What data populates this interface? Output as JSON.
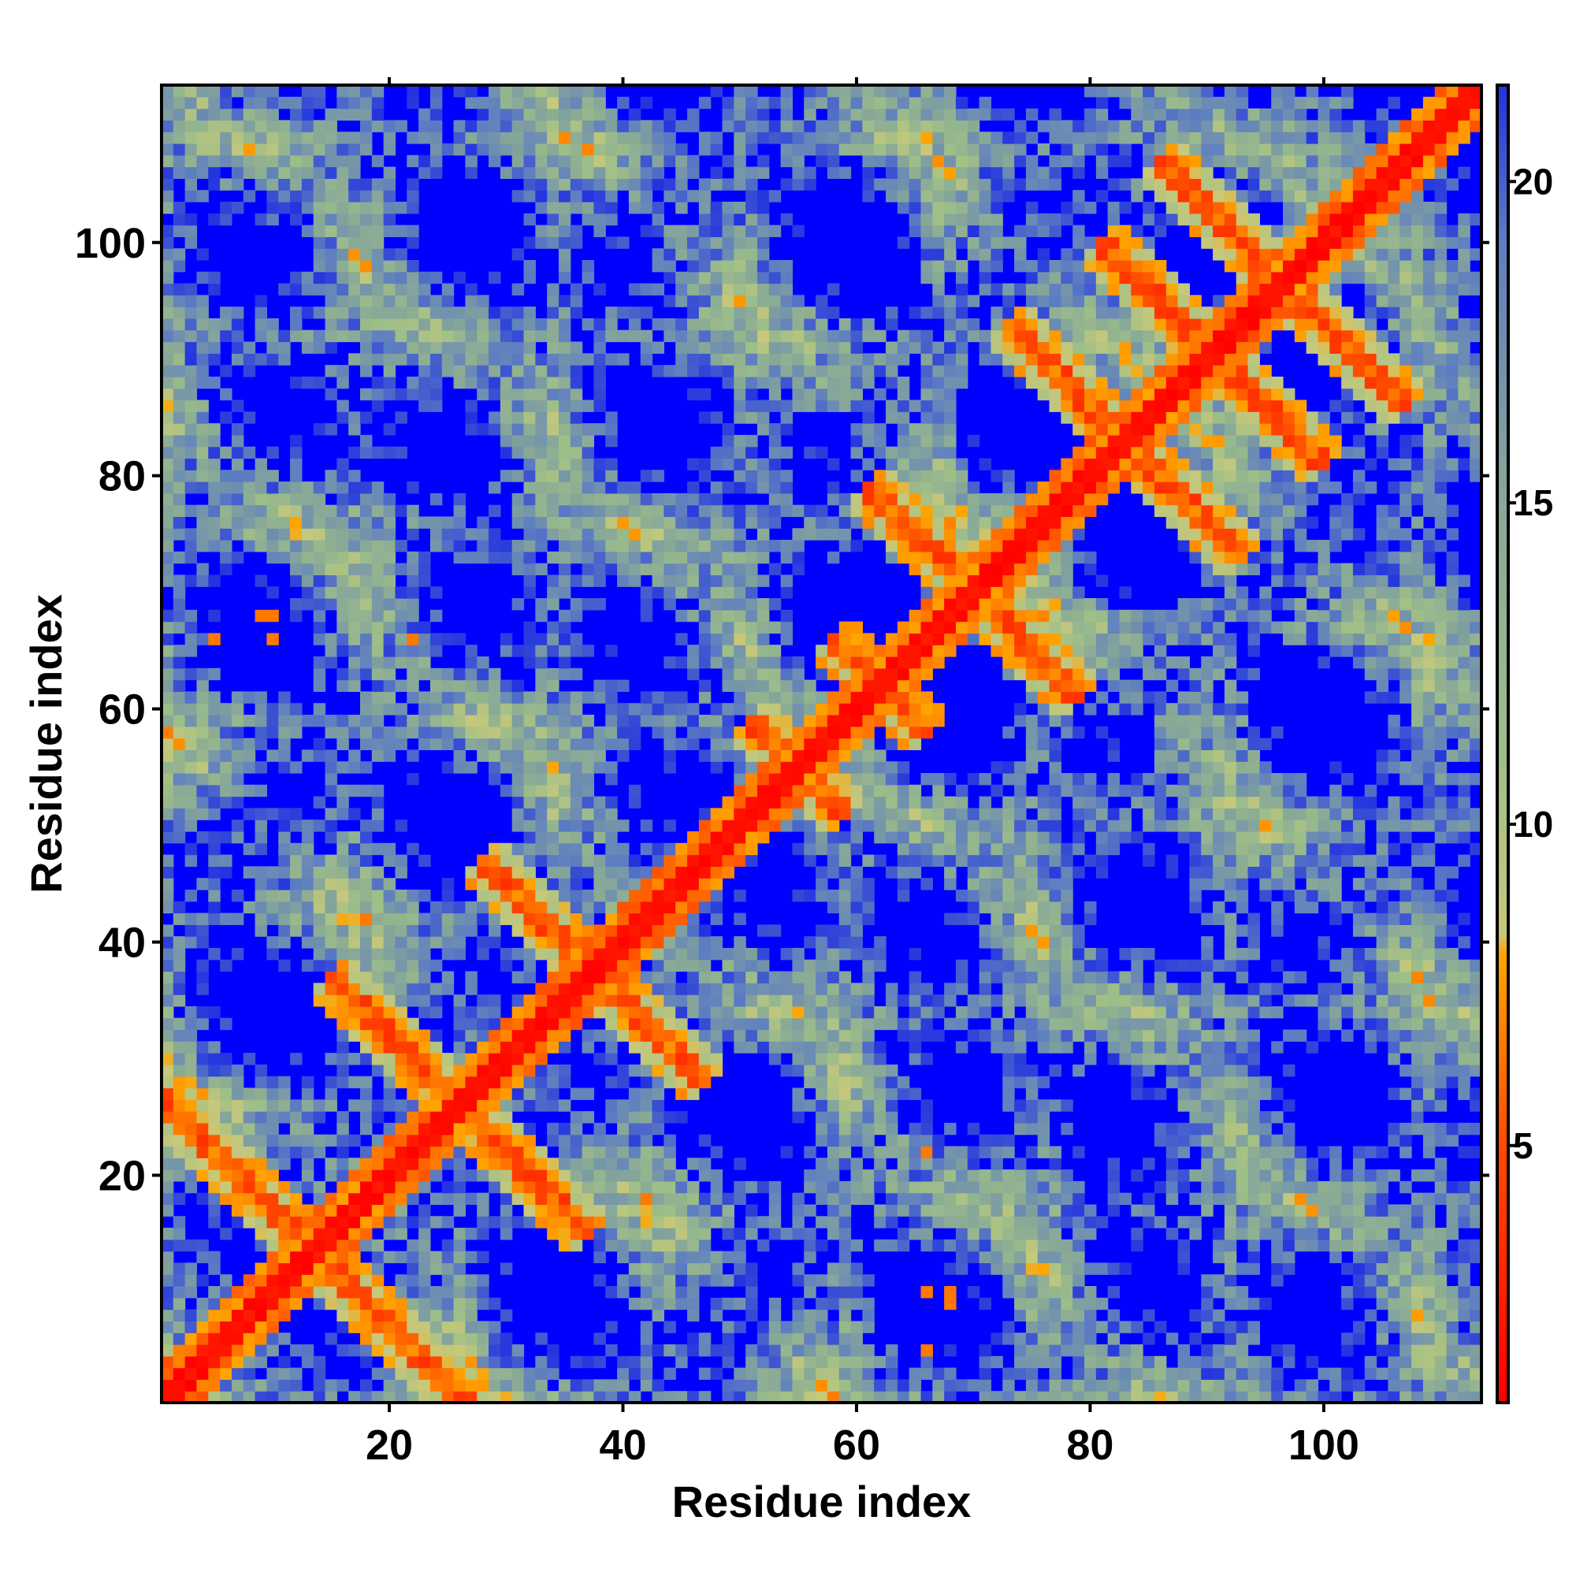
{
  "chart_data": {
    "type": "heatmap",
    "title": "",
    "xlabel": "Residue index",
    "ylabel": "Residue index",
    "n": 113,
    "xlim": [
      1,
      113
    ],
    "ylim": [
      1,
      113
    ],
    "x_ticks": [
      20,
      40,
      60,
      80,
      100
    ],
    "y_ticks": [
      20,
      40,
      60,
      80,
      100
    ],
    "colorbar": {
      "range": [
        1,
        21.5
      ],
      "ticks": [
        5,
        10,
        15,
        20
      ],
      "stops": [
        {
          "value": 1,
          "color": "#ff0000"
        },
        {
          "value": 5,
          "color": "#ff4a00"
        },
        {
          "value": 8,
          "color": "#ffa500"
        },
        {
          "value": 8.3,
          "color": "#c8c87a"
        },
        {
          "value": 11,
          "color": "#9fbf88"
        },
        {
          "value": 15,
          "color": "#88a898"
        },
        {
          "value": 19,
          "color": "#5f7fc0"
        },
        {
          "value": 21.5,
          "color": "#2233e0"
        }
      ],
      "cap_color": "#0000ff"
    },
    "value_meaning": "pairwise residue distance",
    "cutoff_color": "#0000ff",
    "structure_features": {
      "diagonal": "distance ~1 along i=j",
      "antiparallel_contacts": [
        {
          "center": [
            22,
            5
          ],
          "length_residues": 14
        },
        {
          "center": [
            30,
            22
          ],
          "length_residues": 14
        },
        {
          "center": [
            40,
            35
          ],
          "length_residues": 14
        },
        {
          "center": [
            55,
            55
          ],
          "length_residues": 8
        },
        {
          "center": [
            62,
            62
          ],
          "length_residues": 8
        },
        {
          "center": [
            72,
            68
          ],
          "length_residues": 14
        },
        {
          "center": [
            86,
            80
          ],
          "length_residues": 14
        },
        {
          "center": [
            93,
            88
          ],
          "length_residues": 14
        },
        {
          "center": [
            100,
            93
          ],
          "length_residues": 14
        }
      ],
      "sparse_orange_points": [
        [
          66,
          5
        ],
        [
          66,
          22
        ],
        [
          68,
          10
        ],
        [
          10,
          66
        ],
        [
          22,
          66
        ],
        [
          9,
          68
        ]
      ]
    }
  }
}
